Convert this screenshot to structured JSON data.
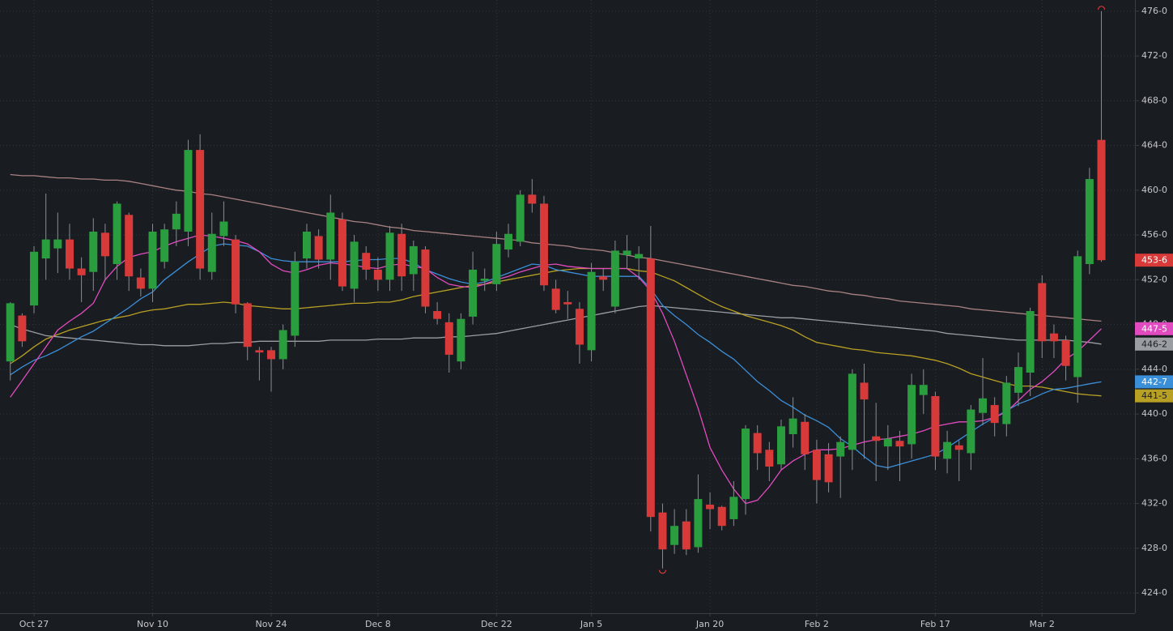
{
  "chart_data": {
    "type": "candlestick",
    "categories": [
      null,
      null,
      "Oct 27",
      null,
      null,
      null,
      null,
      null,
      null,
      null,
      null,
      null,
      "Nov 10",
      null,
      null,
      null,
      null,
      null,
      null,
      null,
      null,
      null,
      "Nov 24",
      null,
      null,
      null,
      null,
      null,
      null,
      null,
      null,
      "Dec 8",
      null,
      null,
      null,
      null,
      null,
      null,
      null,
      null,
      null,
      "Dec 22",
      null,
      null,
      null,
      null,
      null,
      null,
      null,
      "Jan 5",
      null,
      null,
      null,
      null,
      null,
      null,
      null,
      null,
      null,
      "Jan 20",
      null,
      null,
      null,
      null,
      null,
      null,
      null,
      null,
      "Feb 2",
      null,
      null,
      null,
      null,
      null,
      null,
      null,
      null,
      null,
      "Feb 17",
      null,
      null,
      null,
      null,
      null,
      null,
      null,
      null,
      "Mar 2",
      null,
      null,
      null,
      null,
      null
    ],
    "ohlc": {
      "open": [
        444.7,
        448.8,
        449.7,
        453.9,
        454.8,
        455.6,
        453,
        452.7,
        456.2,
        453.4,
        457.8,
        452.2,
        451.2,
        453.6,
        456.5,
        456.3,
        463.6,
        452.7,
        455.9,
        455.6,
        449.9,
        445.7,
        445.7,
        444.9,
        447,
        453.9,
        455.9,
        453.8,
        457.4,
        451.2,
        454.4,
        452.9,
        452,
        456.1,
        452.5,
        454.7,
        449.2,
        448.2,
        444.7,
        448.7,
        451.9,
        451.6,
        454.7,
        455.4,
        459.6,
        458.8,
        451.2,
        450,
        449.4,
        445.7,
        452.3,
        449.6,
        454.2,
        453.9,
        453.9,
        431.2,
        428.3,
        430.4,
        428.1,
        431.9,
        431.7,
        430.6,
        432.4,
        438.3,
        436.8,
        435.5,
        438.2,
        439.3,
        436.8,
        436.4,
        436.2,
        436.8,
        442.8,
        438,
        437.1,
        437.6,
        437.3,
        441.7,
        441.6,
        436,
        437.2,
        436.5,
        440.1,
        440.8,
        439.1,
        441.9,
        443.7,
        451.7,
        447.2,
        446.6,
        443.3,
        453.4,
        464.5
      ],
      "high": [
        450,
        449,
        455,
        459.7,
        458,
        457,
        454,
        457.5,
        457,
        459,
        458,
        453,
        457,
        457,
        459,
        464.5,
        465,
        458,
        459,
        456,
        450,
        446,
        446,
        448,
        454.5,
        457,
        456.5,
        459.6,
        458,
        456,
        455,
        454,
        456.8,
        457,
        455.5,
        455,
        450,
        449,
        449,
        454.5,
        453,
        456.3,
        457,
        460,
        461,
        459.5,
        452,
        451,
        450,
        453.5,
        453,
        455.5,
        456,
        455,
        456.8,
        432,
        431.5,
        431.5,
        434.6,
        433,
        431.8,
        434,
        439,
        439,
        437.5,
        439.5,
        441.5,
        440,
        437.7,
        437.4,
        438,
        444,
        444.5,
        441,
        439,
        438.5,
        443.6,
        444,
        442,
        438.5,
        437.6,
        440.8,
        445,
        441.5,
        443.4,
        445.5,
        449.5,
        452.4,
        448,
        447,
        454.6,
        462,
        476
      ],
      "low": [
        443,
        446,
        449,
        452,
        452.6,
        452,
        450,
        451,
        452,
        452,
        451,
        450.5,
        450,
        453,
        455,
        455,
        452,
        452,
        455,
        449,
        444.8,
        443,
        442,
        444,
        446,
        453,
        453,
        452,
        451,
        450,
        452,
        451,
        451,
        451,
        451,
        449,
        448,
        443.7,
        444,
        448,
        451,
        451,
        454,
        455,
        458,
        451,
        449,
        448.5,
        444.5,
        444.7,
        451,
        449,
        453,
        452,
        429.5,
        426.2,
        427.5,
        427.4,
        427.6,
        429.7,
        429.6,
        430,
        431,
        435,
        434,
        435,
        437,
        435,
        432,
        433,
        432.5,
        435,
        436,
        434,
        435,
        434,
        436,
        440,
        435,
        434.7,
        434,
        435,
        439,
        438,
        438,
        440.7,
        441.6,
        445,
        445,
        443,
        441,
        452.5,
        453.6
      ],
      "close": [
        449.9,
        446.5,
        454.5,
        455.6,
        455.6,
        453,
        452.4,
        456.3,
        454.1,
        458.8,
        452.3,
        451.2,
        456.3,
        456.5,
        457.9,
        463.6,
        453,
        456.1,
        457.2,
        449.8,
        446,
        445.5,
        444.9,
        447.5,
        453.6,
        456.3,
        453.8,
        458,
        451.4,
        455.4,
        452.9,
        452,
        456.2,
        452.3,
        455,
        449.6,
        448.5,
        445.3,
        448.5,
        452.9,
        452.1,
        455.2,
        456.1,
        459.6,
        458.8,
        451.5,
        449.3,
        449.8,
        446.2,
        452.7,
        452,
        454.6,
        454.6,
        454.3,
        430.8,
        427.9,
        430,
        427.9,
        432.4,
        431.5,
        430,
        432.6,
        438.7,
        436.5,
        435.3,
        438.9,
        439.6,
        436.4,
        434.1,
        433.9,
        437.5,
        443.6,
        441.3,
        437.6,
        437.8,
        437.1,
        442.6,
        442.6,
        436.2,
        437.5,
        436.8,
        440.4,
        441.4,
        439.2,
        442.8,
        444.2,
        449.2,
        446.5,
        446.5,
        444.3,
        454.1,
        461,
        453.75
      ]
    },
    "up_color": "#2a9d3e",
    "down_color": "#d83a3a",
    "last_price_label": "453-6",
    "series": [
      {
        "color": "#a88283",
        "values": [
          461.4,
          461.3,
          461.3,
          461.2,
          461.1,
          461.1,
          461,
          461,
          460.9,
          460.9,
          460.8,
          460.6,
          460.4,
          460.2,
          460,
          459.9,
          459.7,
          459.6,
          459.4,
          459.2,
          459,
          458.8,
          458.6,
          458.4,
          458.2,
          458,
          457.8,
          457.6,
          457.4,
          457.2,
          457.1,
          456.9,
          456.7,
          456.6,
          456.4,
          456.3,
          456.2,
          456.1,
          456,
          455.9,
          455.8,
          455.7,
          455.6,
          455.5,
          455.3,
          455.2,
          455.1,
          455,
          454.8,
          454.7,
          454.6,
          454.4,
          454.2,
          454,
          453.9,
          453.7,
          453.5,
          453.3,
          453.1,
          452.9,
          452.7,
          452.5,
          452.3,
          452.1,
          451.9,
          451.7,
          451.5,
          451.4,
          451.2,
          451,
          450.9,
          450.7,
          450.6,
          450.4,
          450.3,
          450.1,
          450,
          449.9,
          449.8,
          449.7,
          449.6,
          449.4,
          449.3,
          449.2,
          449.1,
          449,
          448.9,
          448.8,
          448.7,
          448.6,
          448.5,
          448.4,
          448.3
        ]
      },
      {
        "color": "#9a9ea3",
        "badge_text": "#1b1e22",
        "last_value_label": "446-2",
        "values": [
          448,
          447.6,
          447.3,
          447,
          446.9,
          446.8,
          446.7,
          446.6,
          446.5,
          446.4,
          446.3,
          446.2,
          446.2,
          446.1,
          446.1,
          446.1,
          446.2,
          446.3,
          446.3,
          446.4,
          446.4,
          446.5,
          446.5,
          446.5,
          446.5,
          446.5,
          446.5,
          446.6,
          446.6,
          446.6,
          446.6,
          446.7,
          446.7,
          446.7,
          446.8,
          446.8,
          446.8,
          446.9,
          446.9,
          447,
          447.1,
          447.2,
          447.4,
          447.6,
          447.8,
          448,
          448.2,
          448.4,
          448.6,
          448.8,
          449,
          449.2,
          449.4,
          449.6,
          449.7,
          449.6,
          449.5,
          449.4,
          449.3,
          449.2,
          449.1,
          449,
          448.9,
          448.8,
          448.7,
          448.6,
          448.6,
          448.5,
          448.4,
          448.3,
          448.2,
          448.1,
          448,
          447.9,
          447.8,
          447.7,
          447.6,
          447.5,
          447.4,
          447.2,
          447.1,
          447,
          446.9,
          446.8,
          446.7,
          446.6,
          446.6,
          446.6,
          446.6,
          446.6,
          446.5,
          446.4,
          446.25
        ]
      },
      {
        "color": "#b8a024",
        "badge_text": "#1b1e22",
        "last_value_label": "441-5",
        "values": [
          444.5,
          445.2,
          446,
          446.7,
          447.1,
          447.5,
          447.8,
          448.1,
          448.4,
          448.6,
          448.8,
          449.1,
          449.3,
          449.4,
          449.6,
          449.8,
          449.8,
          449.9,
          450,
          449.9,
          449.7,
          449.6,
          449.5,
          449.4,
          449.4,
          449.5,
          449.6,
          449.7,
          449.8,
          449.9,
          449.9,
          450,
          450,
          450.2,
          450.5,
          450.7,
          450.9,
          451.1,
          451.3,
          451.5,
          451.6,
          451.8,
          452,
          452.2,
          452.4,
          452.6,
          452.8,
          452.9,
          453,
          453,
          453,
          453,
          453,
          452.8,
          452.7,
          452.3,
          451.9,
          451.3,
          450.7,
          450.1,
          449.6,
          449.2,
          448.8,
          448.5,
          448.2,
          447.9,
          447.5,
          446.9,
          446.4,
          446.2,
          446,
          445.8,
          445.7,
          445.5,
          445.4,
          445.3,
          445.2,
          445,
          444.8,
          444.5,
          444.1,
          443.6,
          443.3,
          443,
          442.7,
          442.5,
          442.5,
          442.4,
          442.2,
          442,
          441.8,
          441.7,
          441.625
        ]
      },
      {
        "color": "#3b8fd9",
        "badge_text": "#ffffff",
        "last_value_label": "442-7",
        "values": [
          443.5,
          444.2,
          444.8,
          445.2,
          445.7,
          446.3,
          446.9,
          447.4,
          448.1,
          448.8,
          449.5,
          450.3,
          450.9,
          452,
          452.8,
          453.6,
          454.3,
          455,
          455.2,
          455.1,
          455,
          454.5,
          453.9,
          453.7,
          453.6,
          453.6,
          453.6,
          453.6,
          453.6,
          453.7,
          453.8,
          453.8,
          453.9,
          453.9,
          453.5,
          452.9,
          452.5,
          452.1,
          451.8,
          451.6,
          451.8,
          452.2,
          452.6,
          453,
          453.4,
          453.3,
          452.9,
          452.7,
          452.5,
          452.3,
          452.3,
          452.3,
          452.3,
          452.3,
          451.2,
          449.7,
          448.8,
          448,
          447.1,
          446.4,
          445.6,
          444.9,
          443.9,
          442.9,
          442.1,
          441.2,
          440.6,
          439.9,
          439.4,
          438.8,
          437.8,
          437.1,
          436.2,
          435.4,
          435.2,
          435.5,
          435.8,
          436.1,
          436.4,
          437,
          437.7,
          438.4,
          439.1,
          439.7,
          440.3,
          440.9,
          441.3,
          441.8,
          442.2,
          442.3,
          442.5,
          442.7,
          442.875
        ]
      },
      {
        "color": "#e24bc0",
        "badge_text": "#ffffff",
        "last_value_label": "447-5",
        "values": [
          441.5,
          443,
          444.5,
          446,
          447.5,
          448.3,
          449,
          449.9,
          452,
          453.2,
          454,
          454.3,
          454.5,
          455,
          455.4,
          455.7,
          456,
          455.9,
          455.7,
          455.5,
          455.2,
          454.5,
          453.4,
          452.8,
          452.6,
          452.9,
          453.3,
          453.5,
          453.4,
          453.3,
          453.1,
          453,
          453.3,
          453.4,
          453.2,
          453,
          452.2,
          451.6,
          451.4,
          451.3,
          451.6,
          452,
          452.3,
          452.7,
          453,
          453.3,
          453.4,
          453.2,
          453.1,
          453,
          453,
          453,
          453,
          452.2,
          451,
          449,
          446.5,
          443.5,
          440.5,
          437,
          435,
          433.3,
          432,
          432.3,
          433.5,
          435,
          435.8,
          436.4,
          436.8,
          436.8,
          436.9,
          437.2,
          437.5,
          437.7,
          437.8,
          438,
          438.2,
          438.5,
          438.9,
          439.1,
          439.3,
          439.3,
          439.4,
          439.7,
          440.2,
          441.2,
          442.2,
          442.9,
          443.8,
          444.9,
          445.6,
          446.6,
          447.625
        ]
      }
    ],
    "ylim": [
      422.2,
      477
    ],
    "yticks": [
      {
        "value": 424,
        "label": "424-0"
      },
      {
        "value": 428,
        "label": "428-0"
      },
      {
        "value": 432,
        "label": "432-0"
      },
      {
        "value": 436,
        "label": "436-0"
      },
      {
        "value": 440,
        "label": "440-0"
      },
      {
        "value": 444,
        "label": "444-0"
      },
      {
        "value": 448,
        "label": "448-0"
      },
      {
        "value": 452,
        "label": "452-0"
      },
      {
        "value": 456,
        "label": "456-0"
      },
      {
        "value": 460,
        "label": "460-0"
      },
      {
        "value": 464,
        "label": "464-0"
      },
      {
        "value": 468,
        "label": "468-0"
      },
      {
        "value": 472,
        "label": "472-0"
      },
      {
        "value": 476,
        "label": "476-0"
      }
    ],
    "grid": true
  }
}
